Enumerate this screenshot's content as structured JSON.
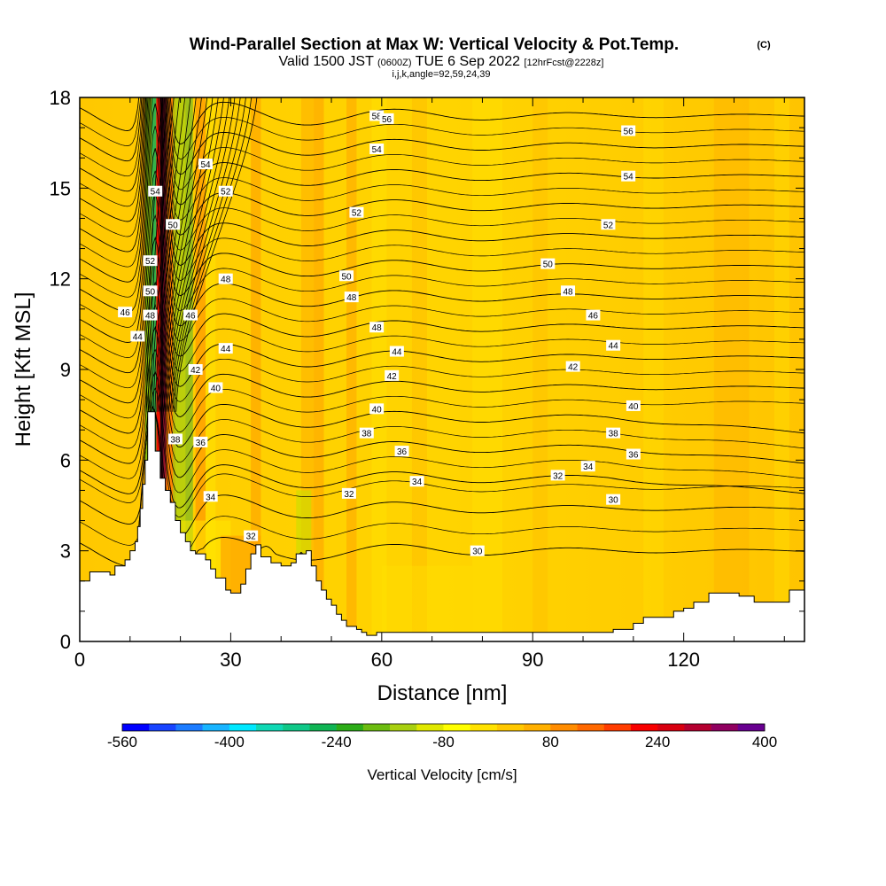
{
  "chart_data": {
    "type": "heatmap",
    "title": "Wind-Parallel Section at Max W: Vertical Velocity & Pot.Temp.",
    "title_mark": "(C)",
    "subtitle_main": "Valid 1500 JST",
    "subtitle_zulu": "(0600Z)",
    "subtitle_date": "TUE 6 Sep 2022",
    "subtitle_fcst": "[12hrFcst@2228z]",
    "subtitle2": "i,j,k,angle=92,59,24,39",
    "xlabel": "Distance [nm]",
    "ylabel": "Height [Kft MSL]",
    "xlim": [
      0,
      144
    ],
    "ylim": [
      0,
      18
    ],
    "xticks": [
      "0",
      "30",
      "60",
      "90",
      "120"
    ],
    "yticks": [
      "0",
      "3",
      "6",
      "9",
      "12",
      "15",
      "18"
    ],
    "colorbar": {
      "label": "Vertical Velocity [cm/s]",
      "tick_labels": [
        "-560",
        "-400",
        "-240",
        "-80",
        "80",
        "240",
        "400"
      ],
      "colors": [
        "#0000ff",
        "#1844ff",
        "#1c7cff",
        "#18b4ff",
        "#00e8ff",
        "#10d8b4",
        "#10c888",
        "#10b454",
        "#2cac18",
        "#6cbc10",
        "#a8d010",
        "#e0e800",
        "#ffff00",
        "#ffe200",
        "#ffc800",
        "#ffb000",
        "#ff8c00",
        "#ff6800",
        "#ff3c00",
        "#f80000",
        "#d80010",
        "#b40030",
        "#900060",
        "#680090"
      ]
    },
    "contour_field": "Potential temperature",
    "contour_levels": [
      30,
      32,
      34,
      36,
      38,
      40,
      42,
      44,
      46,
      48,
      50,
      52,
      54,
      56,
      58
    ],
    "contour_labels": [
      {
        "text": "58",
        "x": 59,
        "y": 17.4
      },
      {
        "text": "56",
        "x": 61,
        "y": 17.3
      },
      {
        "text": "56",
        "x": 109,
        "y": 16.9
      },
      {
        "text": "54",
        "x": 25,
        "y": 15.8
      },
      {
        "text": "54",
        "x": 59,
        "y": 16.3
      },
      {
        "text": "54",
        "x": 109,
        "y": 15.4
      },
      {
        "text": "54",
        "x": 15,
        "y": 14.9
      },
      {
        "text": "52",
        "x": 29,
        "y": 14.9
      },
      {
        "text": "52",
        "x": 55,
        "y": 14.2
      },
      {
        "text": "52",
        "x": 105,
        "y": 13.8
      },
      {
        "text": "50",
        "x": 18.5,
        "y": 13.8
      },
      {
        "text": "50",
        "x": 53,
        "y": 12.1
      },
      {
        "text": "50",
        "x": 93,
        "y": 12.5
      },
      {
        "text": "52",
        "x": 14,
        "y": 12.6
      },
      {
        "text": "50",
        "x": 14,
        "y": 11.6
      },
      {
        "text": "48",
        "x": 29,
        "y": 12.0
      },
      {
        "text": "48",
        "x": 54,
        "y": 11.4
      },
      {
        "text": "48",
        "x": 97,
        "y": 11.6
      },
      {
        "text": "46",
        "x": 9,
        "y": 10.9
      },
      {
        "text": "48",
        "x": 14,
        "y": 10.8
      },
      {
        "text": "46",
        "x": 22,
        "y": 10.8
      },
      {
        "text": "46",
        "x": 102,
        "y": 10.8
      },
      {
        "text": "48",
        "x": 59,
        "y": 10.4
      },
      {
        "text": "44",
        "x": 11.5,
        "y": 10.1
      },
      {
        "text": "44",
        "x": 29,
        "y": 9.7
      },
      {
        "text": "44",
        "x": 63,
        "y": 9.6
      },
      {
        "text": "44",
        "x": 106,
        "y": 9.8
      },
      {
        "text": "42",
        "x": 23,
        "y": 9.0
      },
      {
        "text": "42",
        "x": 62,
        "y": 8.8
      },
      {
        "text": "42",
        "x": 98,
        "y": 9.1
      },
      {
        "text": "40",
        "x": 27,
        "y": 8.4
      },
      {
        "text": "40",
        "x": 59,
        "y": 7.7
      },
      {
        "text": "40",
        "x": 110,
        "y": 7.8
      },
      {
        "text": "38",
        "x": 19,
        "y": 6.7
      },
      {
        "text": "36",
        "x": 24,
        "y": 6.6
      },
      {
        "text": "38",
        "x": 57,
        "y": 6.9
      },
      {
        "text": "38",
        "x": 106,
        "y": 6.9
      },
      {
        "text": "36",
        "x": 64,
        "y": 6.3
      },
      {
        "text": "36",
        "x": 110,
        "y": 6.2
      },
      {
        "text": "34",
        "x": 101,
        "y": 5.8
      },
      {
        "text": "32",
        "x": 95,
        "y": 5.5
      },
      {
        "text": "34",
        "x": 67,
        "y": 5.3
      },
      {
        "text": "32",
        "x": 53.5,
        "y": 4.9
      },
      {
        "text": "34",
        "x": 26,
        "y": 4.8
      },
      {
        "text": "30",
        "x": 106,
        "y": 4.7
      },
      {
        "text": "32",
        "x": 34,
        "y": 3.5
      },
      {
        "text": "30",
        "x": 79,
        "y": 3.0
      }
    ],
    "terrain_profile": [
      [
        0,
        2.0
      ],
      [
        2,
        2.0
      ],
      [
        2,
        2.3
      ],
      [
        6,
        2.3
      ],
      [
        6,
        2.2
      ],
      [
        7,
        2.2
      ],
      [
        7,
        2.5
      ],
      [
        9,
        2.5
      ],
      [
        9,
        2.7
      ],
      [
        10,
        2.7
      ],
      [
        10,
        3.0
      ],
      [
        11,
        3.0
      ],
      [
        11,
        3.3
      ],
      [
        11.5,
        3.3
      ],
      [
        11.5,
        3.8
      ],
      [
        12,
        3.8
      ],
      [
        12,
        4.4
      ],
      [
        12.5,
        4.4
      ],
      [
        12.5,
        5.2
      ],
      [
        13,
        5.2
      ],
      [
        13,
        6.0
      ],
      [
        13.5,
        6.0
      ],
      [
        13.5,
        7.6
      ],
      [
        15,
        7.6
      ],
      [
        15,
        6.3
      ],
      [
        16,
        6.3
      ],
      [
        16,
        5.4
      ],
      [
        17,
        5.4
      ],
      [
        17,
        5.0
      ],
      [
        18,
        5.0
      ],
      [
        18,
        4.6
      ],
      [
        19,
        4.6
      ],
      [
        19,
        4.0
      ],
      [
        20,
        4.0
      ],
      [
        20,
        3.6
      ],
      [
        21,
        3.6
      ],
      [
        21,
        3.3
      ],
      [
        22,
        3.3
      ],
      [
        22,
        3.0
      ],
      [
        23,
        3.0
      ],
      [
        23,
        2.9
      ],
      [
        25,
        2.9
      ],
      [
        25,
        2.7
      ],
      [
        26,
        2.7
      ],
      [
        26,
        2.4
      ],
      [
        27,
        2.4
      ],
      [
        27,
        2.1
      ],
      [
        29,
        2.1
      ],
      [
        29,
        1.7
      ],
      [
        30,
        1.7
      ],
      [
        30,
        1.6
      ],
      [
        32,
        1.6
      ],
      [
        32,
        1.9
      ],
      [
        33,
        1.9
      ],
      [
        33,
        2.4
      ],
      [
        34,
        2.4
      ],
      [
        34,
        2.9
      ],
      [
        35,
        2.9
      ],
      [
        35,
        3.2
      ],
      [
        36,
        3.2
      ],
      [
        36,
        2.8
      ],
      [
        38,
        2.8
      ],
      [
        38,
        2.6
      ],
      [
        40,
        2.6
      ],
      [
        40,
        2.5
      ],
      [
        42,
        2.5
      ],
      [
        42,
        2.6
      ],
      [
        43,
        2.6
      ],
      [
        43,
        2.9
      ],
      [
        45,
        2.9
      ],
      [
        45,
        3.0
      ],
      [
        46,
        3.0
      ],
      [
        46,
        2.5
      ],
      [
        47,
        2.5
      ],
      [
        47,
        2.0
      ],
      [
        48,
        2.0
      ],
      [
        48,
        1.7
      ],
      [
        49,
        1.7
      ],
      [
        49,
        1.4
      ],
      [
        50,
        1.4
      ],
      [
        50,
        1.2
      ],
      [
        51,
        1.2
      ],
      [
        51,
        0.9
      ],
      [
        52,
        0.9
      ],
      [
        52,
        0.7
      ],
      [
        53,
        0.7
      ],
      [
        53,
        0.5
      ],
      [
        55,
        0.5
      ],
      [
        55,
        0.4
      ],
      [
        56,
        0.4
      ],
      [
        56,
        0.3
      ],
      [
        57,
        0.3
      ],
      [
        57,
        0.2
      ],
      [
        59,
        0.2
      ],
      [
        59,
        0.3
      ],
      [
        106,
        0.3
      ],
      [
        106,
        0.4
      ],
      [
        110,
        0.4
      ],
      [
        110,
        0.6
      ],
      [
        112,
        0.6
      ],
      [
        112,
        0.8
      ],
      [
        118,
        0.8
      ],
      [
        118,
        1.0
      ],
      [
        120,
        1.0
      ],
      [
        120,
        1.1
      ],
      [
        122,
        1.1
      ],
      [
        122,
        1.3
      ],
      [
        125,
        1.3
      ],
      [
        125,
        1.6
      ],
      [
        131,
        1.6
      ],
      [
        131,
        1.5
      ],
      [
        134,
        1.5
      ],
      [
        134,
        1.3
      ],
      [
        141,
        1.3
      ],
      [
        141,
        1.7
      ],
      [
        144,
        1.7
      ]
    ],
    "cold_palette_note_only": false
  }
}
